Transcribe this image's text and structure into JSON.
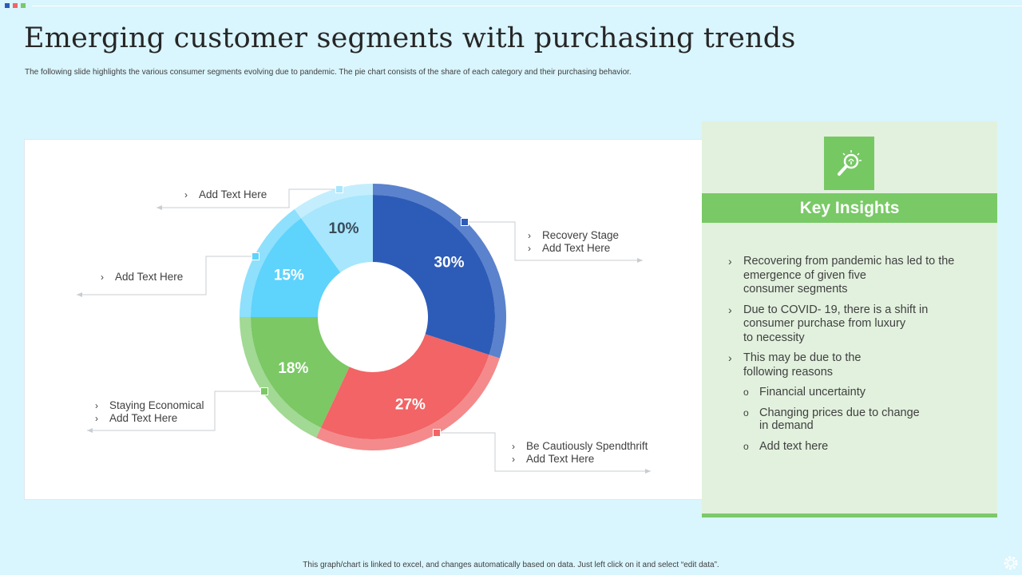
{
  "title": "Emerging customer segments with purchasing trends",
  "subtitle": "The following slide highlights the various consumer segments evolving due to pandemic. The pie chart consists of the share of each category and their purchasing behavior.",
  "colors": {
    "background": "#d9f5fd",
    "dark_blue": "#2d5cb8",
    "red": "#f26465",
    "green": "#7bc865",
    "sky_blue": "#5ed3fc",
    "light_blue": "#a7e6fc",
    "accent_green": "#79c966"
  },
  "chart_data": {
    "type": "pie",
    "donut": true,
    "slices": [
      {
        "value": 30,
        "label": "30%",
        "color": "#2d5cb8",
        "outer_color": "#5b82cc"
      },
      {
        "value": 27,
        "label": "27%",
        "color": "#f26465",
        "outer_color": "#f48a8b"
      },
      {
        "value": 18,
        "label": "18%",
        "color": "#7bc865",
        "outer_color": "#a2d994"
      },
      {
        "value": 15,
        "label": "15%",
        "color": "#5ed3fc",
        "outer_color": "#8ee0fc"
      },
      {
        "value": 10,
        "label": "10%",
        "color": "#a7e6fc",
        "outer_color": "#c4eefd"
      }
    ]
  },
  "callouts": {
    "recovery": [
      "Recovery  Stage",
      "Add Text Here"
    ],
    "cautious": [
      "Be Cautiously Spendthrift",
      "Add Text Here"
    ],
    "economical": [
      "Staying Economical",
      "Add Text Here"
    ],
    "left_middle": [
      "Add Text Here"
    ],
    "top_left": [
      "Add Text Here"
    ]
  },
  "insights": {
    "icon": "lightbulb-magnifier-icon",
    "header": "Key Insights",
    "points": [
      "Recovering from pandemic has led to the\nemergence of given five\nconsumer segments",
      "Due to COVID- 19, there is a shift in\nconsumer purchase from luxury\nto necessity",
      "This may be due to the\nfollowing reasons"
    ],
    "reasons": [
      "Financial uncertainty",
      "Changing prices due to change\nin demand",
      "Add text here"
    ]
  },
  "footer": "This graph/chart is linked to excel, and changes automatically based on data. Just left click on it and select “edit data”.",
  "footer_icon": "gear-icon"
}
